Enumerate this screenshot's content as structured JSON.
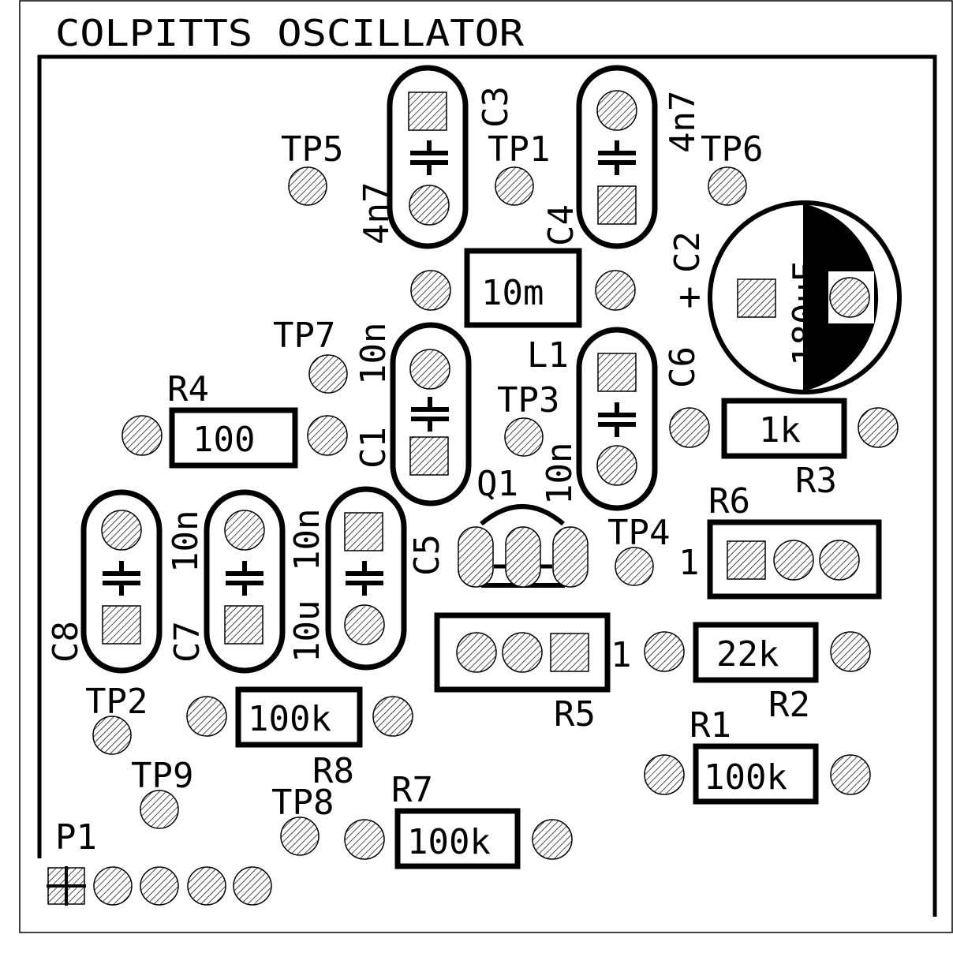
{
  "title": "COLPITTS OSCILLATOR",
  "colors": {
    "background": "#ffffff",
    "ink": "#000000",
    "pad_hatch": "#000000"
  },
  "components": {
    "C1": {
      "ref": "C1",
      "value": "10n"
    },
    "C2": {
      "ref": "C2",
      "value": "180uF",
      "polarity": "+"
    },
    "C3": {
      "ref": "C3",
      "value": "4n7"
    },
    "C4": {
      "ref": "C4",
      "value": "4n7"
    },
    "C5": {
      "ref": "C5",
      "value": "10n"
    },
    "C6": {
      "ref": "C6",
      "value": "10n"
    },
    "C7": {
      "ref": "C7",
      "value": "10u"
    },
    "C8": {
      "ref": "C8",
      "value": "10n"
    },
    "L1": {
      "ref": "L1",
      "value": "10m"
    },
    "R1": {
      "ref": "R1",
      "value": "100k"
    },
    "R2": {
      "ref": "R2",
      "value": "22k"
    },
    "R3": {
      "ref": "R3",
      "value": "1k"
    },
    "R4": {
      "ref": "R4",
      "value": "100"
    },
    "R5": {
      "ref": "R5",
      "pin1": "1"
    },
    "R6": {
      "ref": "R6",
      "pin1": "1"
    },
    "R7": {
      "ref": "R7",
      "value": "100k"
    },
    "R8": {
      "ref": "R8",
      "value": "100k"
    },
    "Q1": {
      "ref": "Q1"
    },
    "P1": {
      "ref": "P1"
    }
  },
  "test_points": [
    "TP1",
    "TP2",
    "TP3",
    "TP4",
    "TP5",
    "TP6",
    "TP7",
    "TP8",
    "TP9"
  ]
}
